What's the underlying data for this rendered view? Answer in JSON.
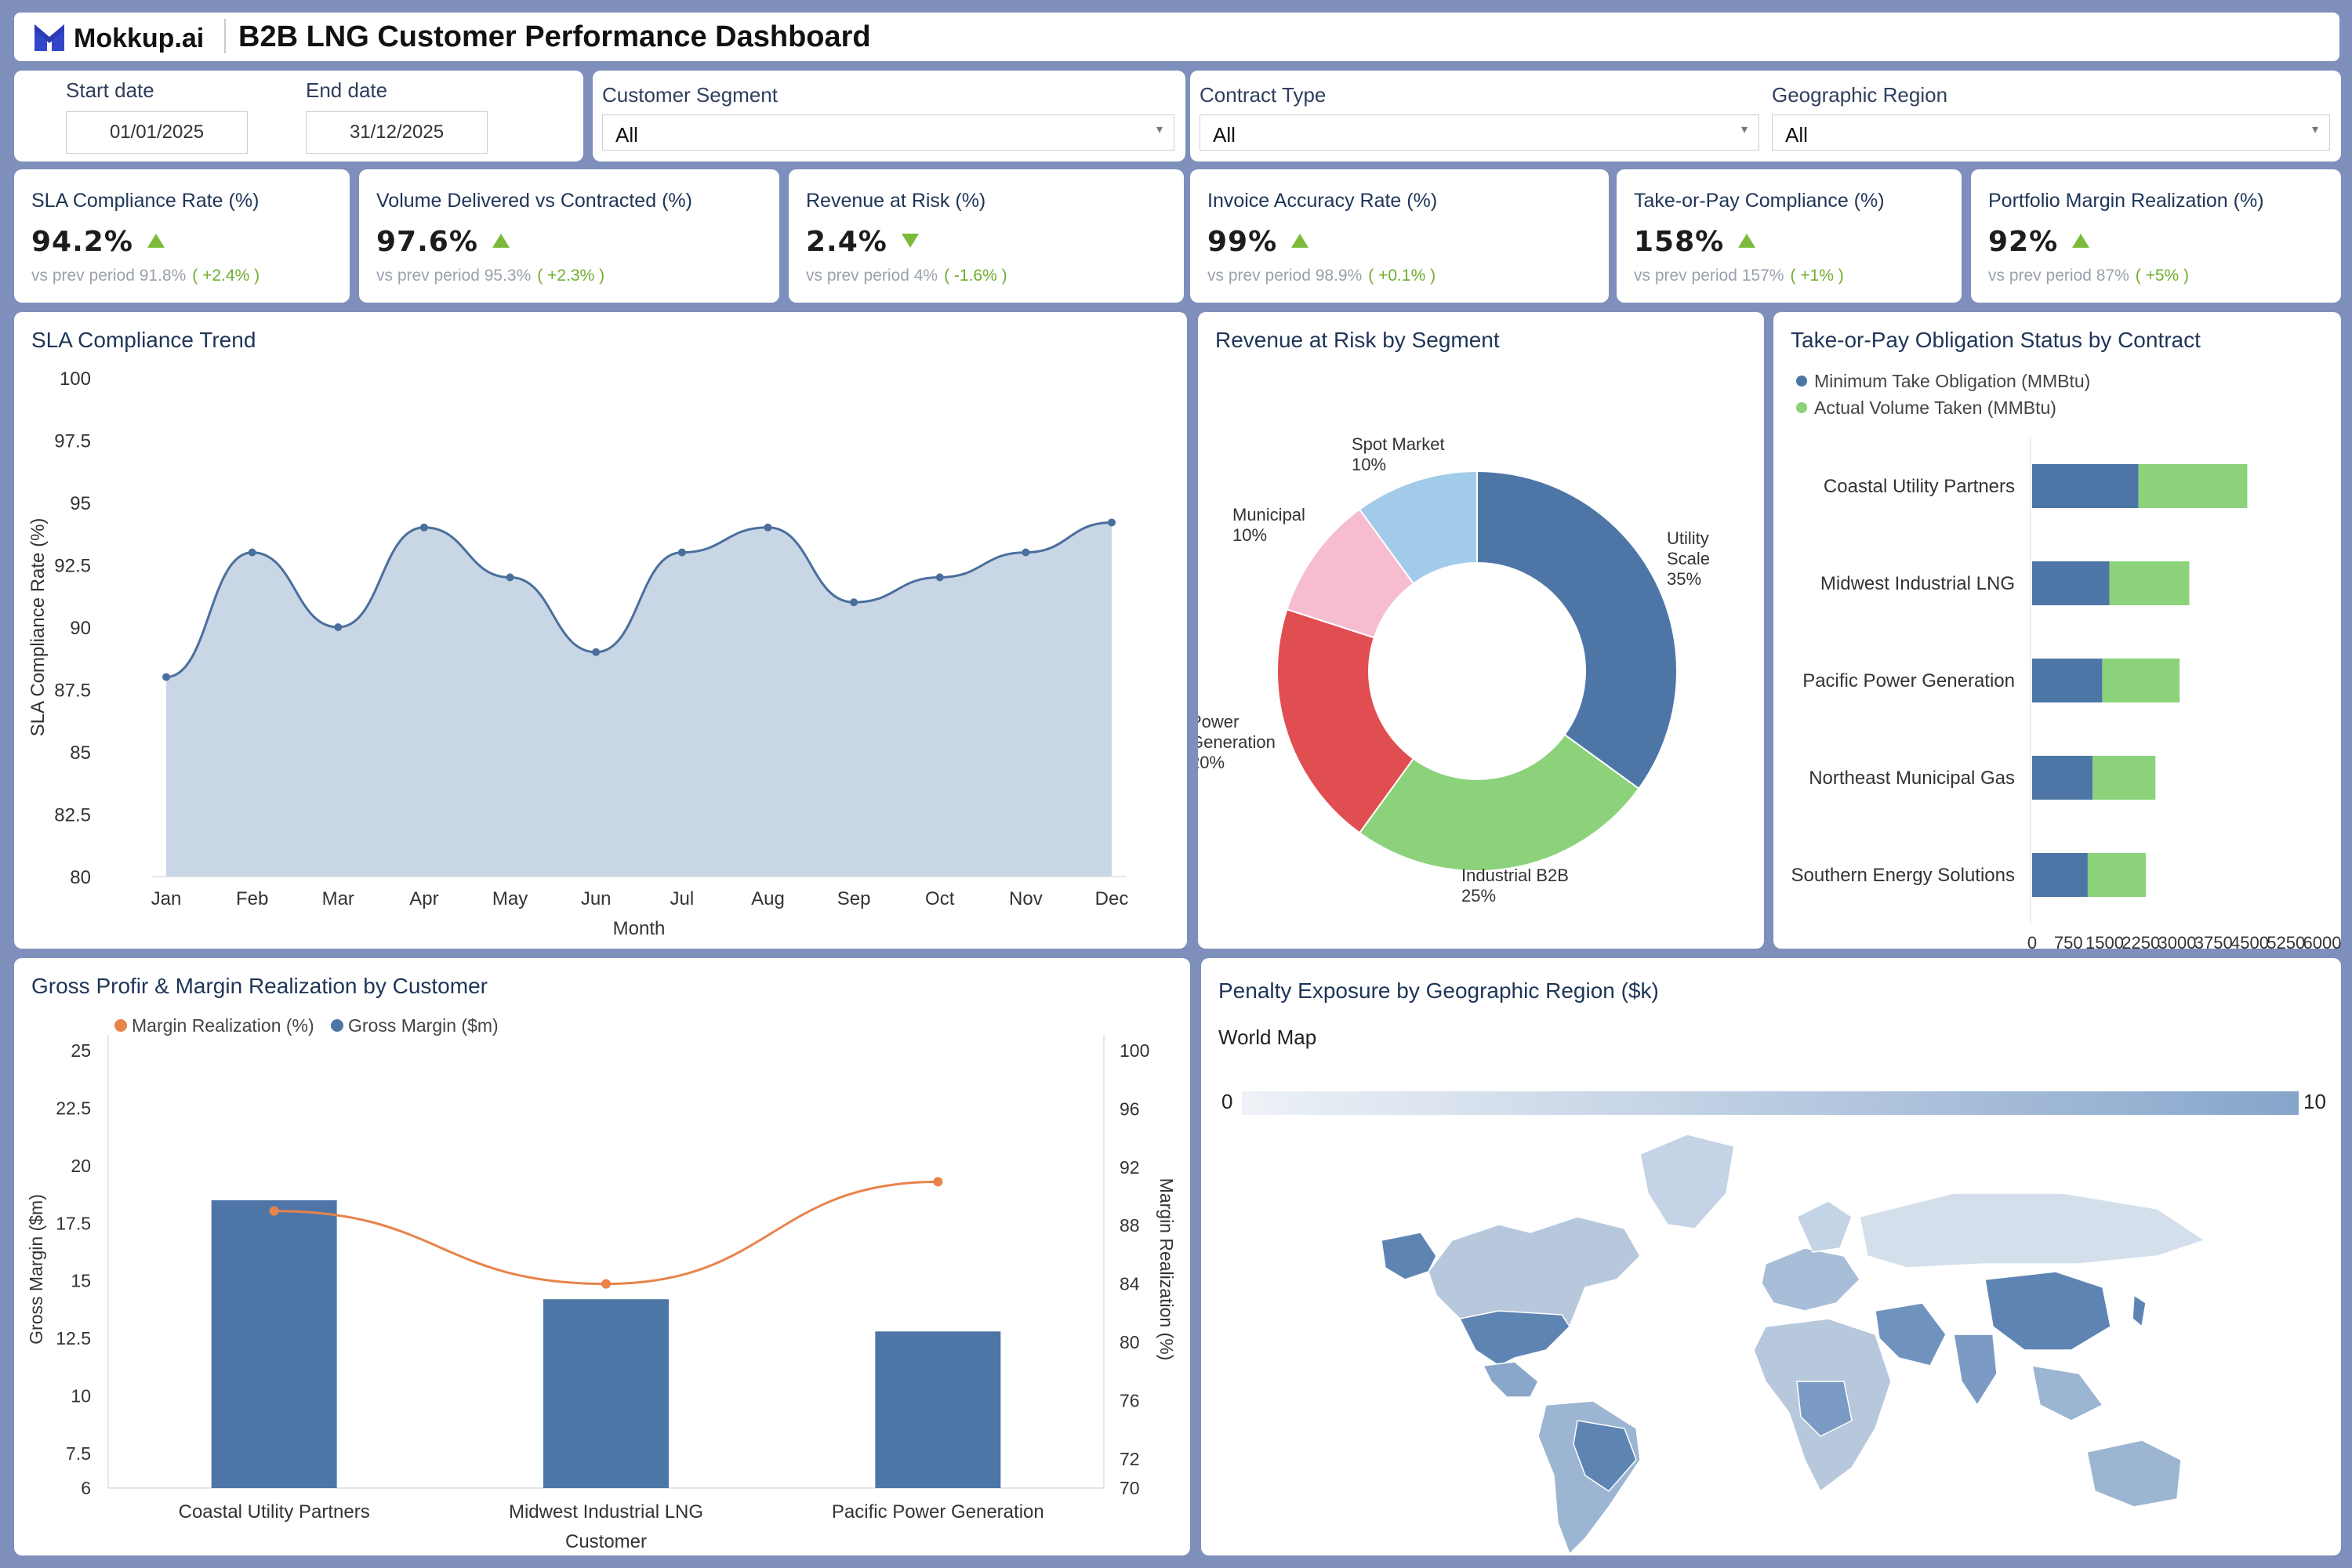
{
  "header": {
    "logo_text": "Mokkup.ai",
    "title": "B2B LNG Customer Performance Dashboard"
  },
  "filters": {
    "start_label": "Start date",
    "end_label": "End date",
    "start_value": "01/01/2025",
    "end_value": "31/12/2025",
    "segment_label": "Customer Segment",
    "segment_value": "All",
    "contract_label": "Contract Type",
    "contract_value": "All",
    "region_label": "Geographic Region",
    "region_value": "All"
  },
  "kpis": [
    {
      "title": "SLA Compliance Rate (%)",
      "value": "94.2%",
      "prev": "vs prev period 91.8%",
      "delta": "( +2.4% )",
      "trend": "up"
    },
    {
      "title": "Volume Delivered vs Contracted (%)",
      "value": "97.6%",
      "prev": "vs prev period 95.3%",
      "delta": "( +2.3% )",
      "trend": "up"
    },
    {
      "title": "Revenue at Risk (%)",
      "value": "2.4%",
      "prev": "vs prev period 4%",
      "delta": "( -1.6% )",
      "trend": "down"
    },
    {
      "title": "Invoice Accuracy Rate (%)",
      "value": "99%",
      "prev": "vs prev period 98.9%",
      "delta": "( +0.1% )",
      "trend": "up"
    },
    {
      "title": "Take-or-Pay Compliance (%)",
      "value": "158%",
      "prev": "vs prev period 157%",
      "delta": "( +1% )",
      "trend": "up"
    },
    {
      "title": "Portfolio Margin Realization (%)",
      "value": "92%",
      "prev": "vs prev period 87%",
      "delta": "( +5% )",
      "trend": "up"
    }
  ],
  "sla_trend": {
    "title": "SLA Compliance Trend",
    "chart_data": {
      "type": "area",
      "x": [
        "Jan",
        "Feb",
        "Mar",
        "Apr",
        "May",
        "Jun",
        "Jul",
        "Aug",
        "Sep",
        "Oct",
        "Nov",
        "Dec"
      ],
      "values": [
        88,
        93,
        90,
        94,
        92,
        89,
        93,
        94,
        91,
        92,
        93,
        94.2
      ],
      "ylim": [
        80,
        100
      ],
      "yticks": [
        "100",
        "97.5",
        "95",
        "92.5",
        "90",
        "87.5",
        "85",
        "82.5",
        "80"
      ],
      "xlabel": "Month",
      "ylabel": "SLA Compliance Rate (%)",
      "color": "#4a6f9d",
      "fill": "#c9d6e6"
    }
  },
  "revenue_risk": {
    "title": "Revenue at Risk by Segment",
    "chart_data": {
      "type": "pie",
      "labels": [
        "Utility Scale",
        "Industrial B2B",
        "Power Generation",
        "Municipal",
        "Spot Market"
      ],
      "display_labels": [
        [
          "Utility",
          "Scale",
          "35%"
        ],
        [
          "Industrial B2B",
          "25%"
        ],
        [
          "Power",
          "Generation",
          "20%"
        ],
        [
          "Municipal",
          "10%"
        ],
        [
          "Spot Market",
          "10%"
        ]
      ],
      "values": [
        35,
        25,
        20,
        10,
        10
      ],
      "colors": [
        "#4d76a7",
        "#8bd27a",
        "#e04e52",
        "#f6bdd0",
        "#a2cbe9"
      ]
    }
  },
  "top": {
    "title": "Take-or-Pay Obligation Status by Contract",
    "chart_data": {
      "type": "bar",
      "orientation": "horizontal",
      "stacked": true,
      "categories": [
        "Coastal Utility Partners",
        "Midwest Industrial LNG",
        "Pacific Power Generation",
        "Northeast Municipal Gas",
        "Southern Energy Solutions"
      ],
      "series": [
        {
          "name": "Minimum Take Obligation (MMBtu)",
          "values": [
            2200,
            1600,
            1450,
            1250,
            1150
          ],
          "color": "#4d76a7"
        },
        {
          "name": "Actual Volume Taken (MMBtu)",
          "values": [
            2250,
            1650,
            1600,
            1300,
            1200
          ],
          "color": "#8bd27a"
        }
      ],
      "xticks": [
        "0",
        "750",
        "1500",
        "2250",
        "3000",
        "3750",
        "4500",
        "5250",
        "6000"
      ],
      "xlim": [
        0,
        6000
      ]
    }
  },
  "gross": {
    "title": "Gross Profir & Margin Realization by Customer",
    "chart_data": {
      "type": "bar",
      "categories": [
        "Coastal Utility Partners",
        "Midwest Industrial LNG",
        "Pacific Power Generation"
      ],
      "series": [
        {
          "name": "Margin Realization (%)",
          "values": [
            89,
            84,
            91
          ],
          "color": "#e8834a",
          "axis": "right"
        },
        {
          "name": "Gross Margin ($m)",
          "values": [
            18.5,
            14.2,
            12.8
          ],
          "color": "#4d76a7",
          "axis": "left"
        }
      ],
      "yticks_left": [
        "25",
        "22.5",
        "20",
        "17.5",
        "15",
        "12.5",
        "10",
        "7.5",
        "6"
      ],
      "yticks_right": [
        "100",
        "96",
        "92",
        "88",
        "84",
        "80",
        "76",
        "72",
        "70"
      ],
      "ylim_left": [
        6,
        25
      ],
      "ylim_right": [
        70,
        100
      ],
      "xlabel": "Customer",
      "ylabel_left": "Gross Margin ($m)",
      "ylabel_right": "Margin Realization (%)"
    }
  },
  "penalty": {
    "title": "Penalty Exposure by Geographic Region ($k)",
    "map_label": "World Map",
    "scale_min": "0",
    "scale_max": "10",
    "colors": [
      "#eef2f7",
      "#86a5cb"
    ]
  }
}
